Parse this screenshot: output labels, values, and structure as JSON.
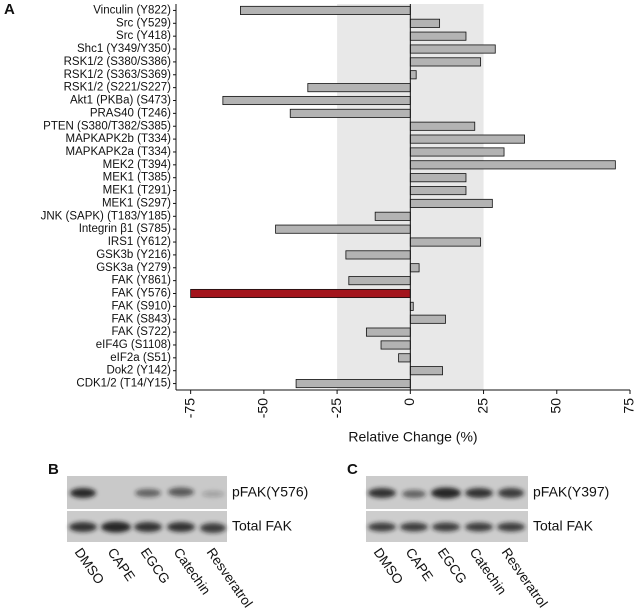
{
  "chart_data": {
    "type": "bar",
    "orientation": "horizontal",
    "panel_label": "A",
    "xlabel": "Relative Change (%)",
    "categories": [
      "Vinculin (Y822)",
      "Src (Y529)",
      "Src (Y418)",
      "Shc1 (Y349/Y350)",
      "RSK1/2 (S380/S386)",
      "RSK1/2 (S363/S369)",
      "RSK1/2 (S221/S227)",
      "Akt1 (PKBa)  (S473)",
      "PRAS40 (T246)",
      "PTEN (S380/T382/S385)",
      "MAPKAPK2b (T334)",
      "MAPKAPK2a (T334)",
      "MEK2 (T394)",
      "MEK1 (T385)",
      "MEK1 (T291)",
      "MEK1 (S297)",
      "JNK (SAPK) (T183/Y185)",
      "Integrin β1 (S785)",
      "IRS1 (Y612)",
      "GSK3b (Y216)",
      "GSK3a (Y279)",
      "FAK (Y861)",
      "FAK (Y576)",
      "FAK (S910)",
      "FAK (S843)",
      "FAK (S722)",
      "eIF4G (S1108)",
      "eIF2a (S51)",
      "Dok2 (Y142)",
      "CDK1/2 (T14/Y15)"
    ],
    "values": [
      -58,
      10,
      19,
      29,
      24,
      2,
      -35,
      -64,
      -41,
      22,
      39,
      32,
      70,
      19,
      19,
      28,
      -12,
      -46,
      24,
      -22,
      3,
      -21,
      -75,
      1,
      12,
      -15,
      -10,
      -4,
      11,
      -39
    ],
    "colors": [
      "#b3b3b3",
      "#b3b3b3",
      "#b3b3b3",
      "#b3b3b3",
      "#b3b3b3",
      "#b3b3b3",
      "#b3b3b3",
      "#b3b3b3",
      "#b3b3b3",
      "#b3b3b3",
      "#b3b3b3",
      "#b3b3b3",
      "#b3b3b3",
      "#b3b3b3",
      "#b3b3b3",
      "#b3b3b3",
      "#b3b3b3",
      "#b3b3b3",
      "#b3b3b3",
      "#b3b3b3",
      "#b3b3b3",
      "#b3b3b3",
      "#a3141c",
      "#b3b3b3",
      "#b3b3b3",
      "#b3b3b3",
      "#b3b3b3",
      "#b3b3b3",
      "#b3b3b3",
      "#b3b3b3"
    ],
    "xlim": [
      -80,
      75
    ],
    "xticks": [
      -75,
      -50,
      -25,
      0,
      25,
      50,
      75
    ],
    "shaded_band": [
      -25,
      25
    ],
    "shade_color": "#e8e8e8"
  },
  "blots": [
    {
      "panel_label": "B",
      "rows": [
        "pFAK(Y576)",
        "Total FAK"
      ],
      "lanes": [
        "DMSO",
        "CAPE",
        "EGCG",
        "Catechin",
        "Resveratrol"
      ]
    },
    {
      "panel_label": "C",
      "rows": [
        "pFAK(Y397)",
        "Total FAK"
      ],
      "lanes": [
        "DMSO",
        "CAPE",
        "EGCG",
        "Catechin",
        "Resveratrol"
      ]
    }
  ]
}
